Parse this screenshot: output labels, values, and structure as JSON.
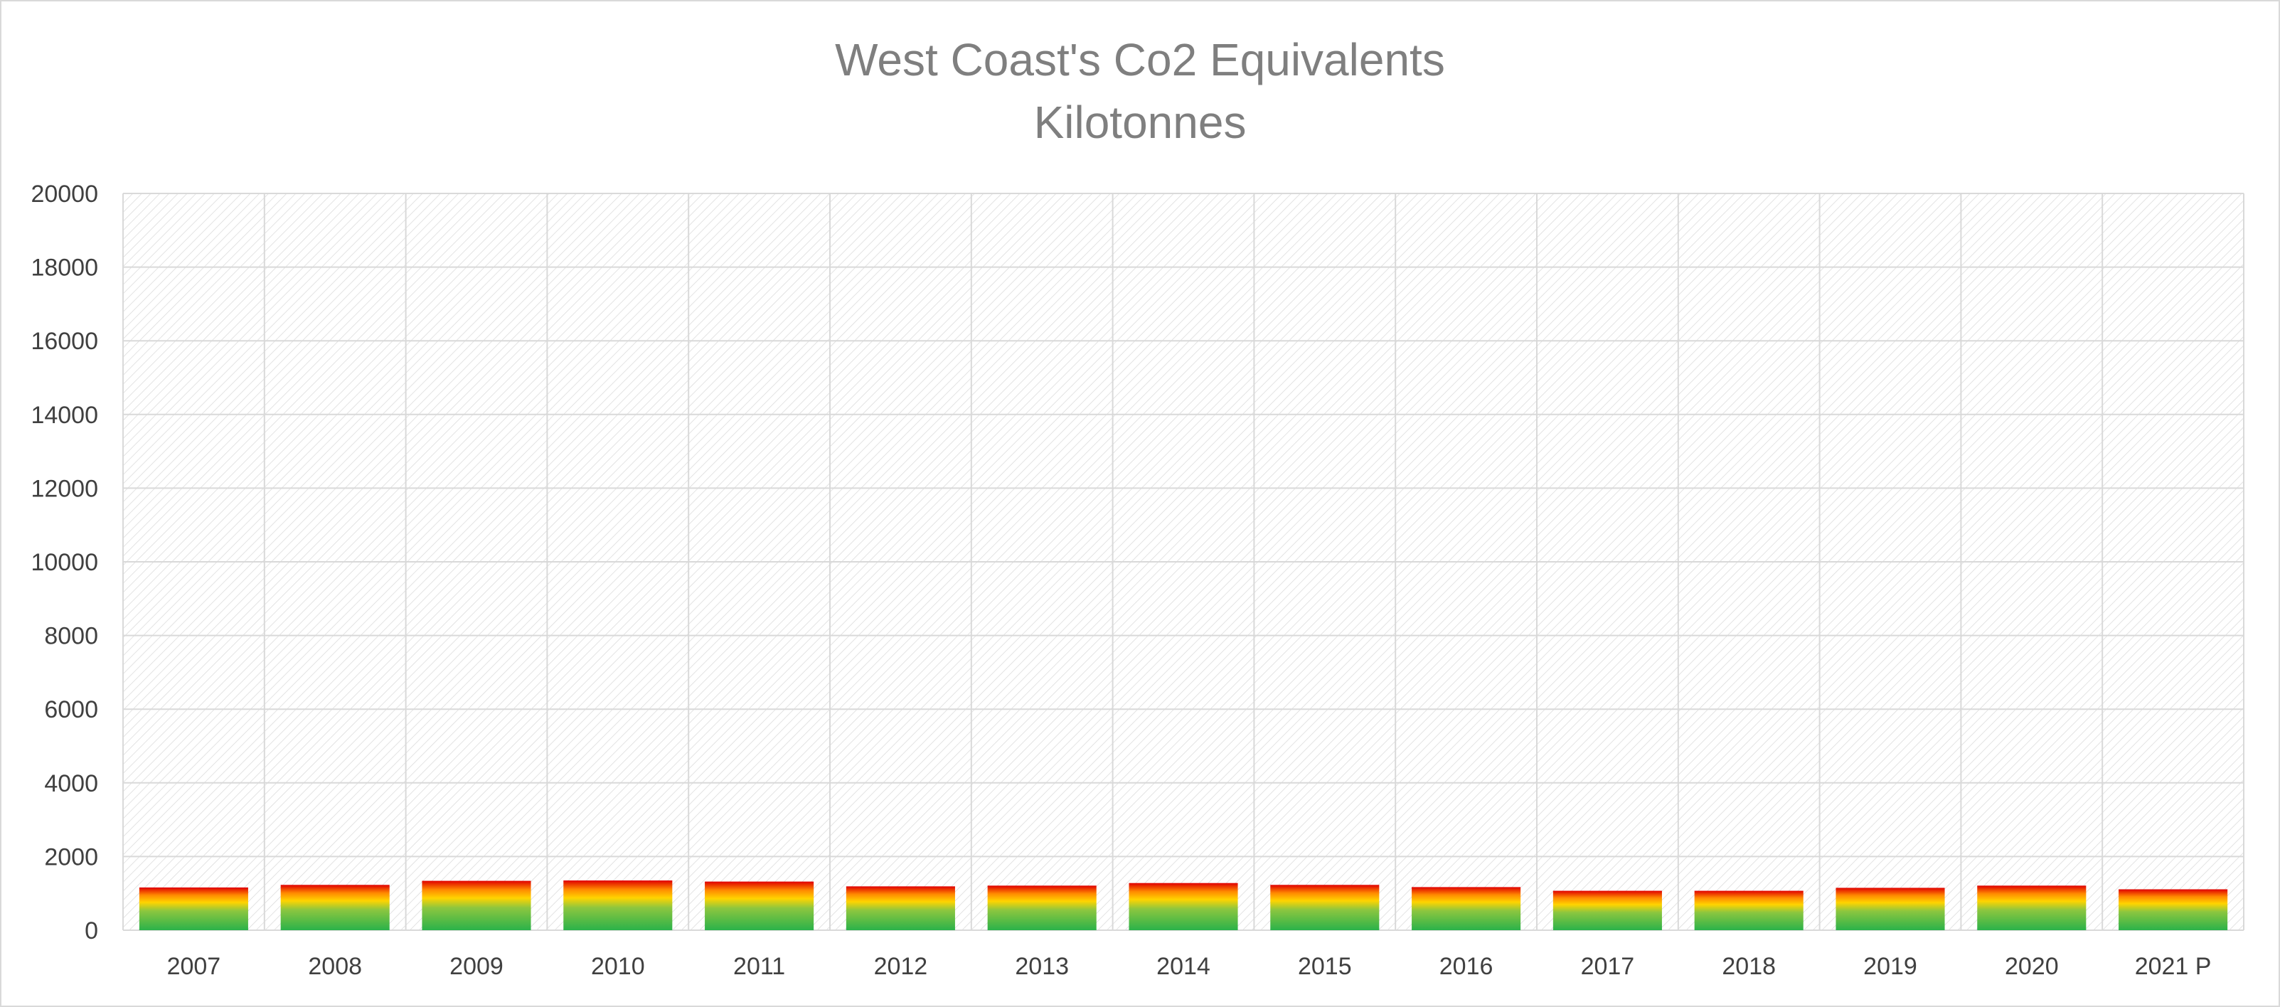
{
  "chart_data": {
    "type": "bar",
    "title": "West Coast's Co2 Equivalents",
    "subtitle": "Kilotonnes",
    "xlabel": "",
    "ylabel": "",
    "categories": [
      "2007",
      "2008",
      "2009",
      "2010",
      "2011",
      "2012",
      "2013",
      "2014",
      "2015",
      "2016",
      "2017",
      "2018",
      "2019",
      "2020",
      "2021 P"
    ],
    "values": [
      1160,
      1230,
      1340,
      1350,
      1320,
      1190,
      1210,
      1280,
      1230,
      1170,
      1070,
      1070,
      1150,
      1210,
      1110
    ],
    "ylim": [
      0,
      20000
    ],
    "yticks": [
      0,
      2000,
      4000,
      6000,
      8000,
      10000,
      12000,
      14000,
      16000,
      18000,
      20000
    ],
    "grid": true,
    "legend": "none",
    "colors": {
      "bar_bottom": "#2ab24a",
      "bar_mid": "#ffd400",
      "bar_top": "#e00000",
      "gridline": "#d9d9d9",
      "plot_hatch": "#dcdcdc",
      "title": "#7f7f7f",
      "tick_label": "#404040"
    }
  }
}
